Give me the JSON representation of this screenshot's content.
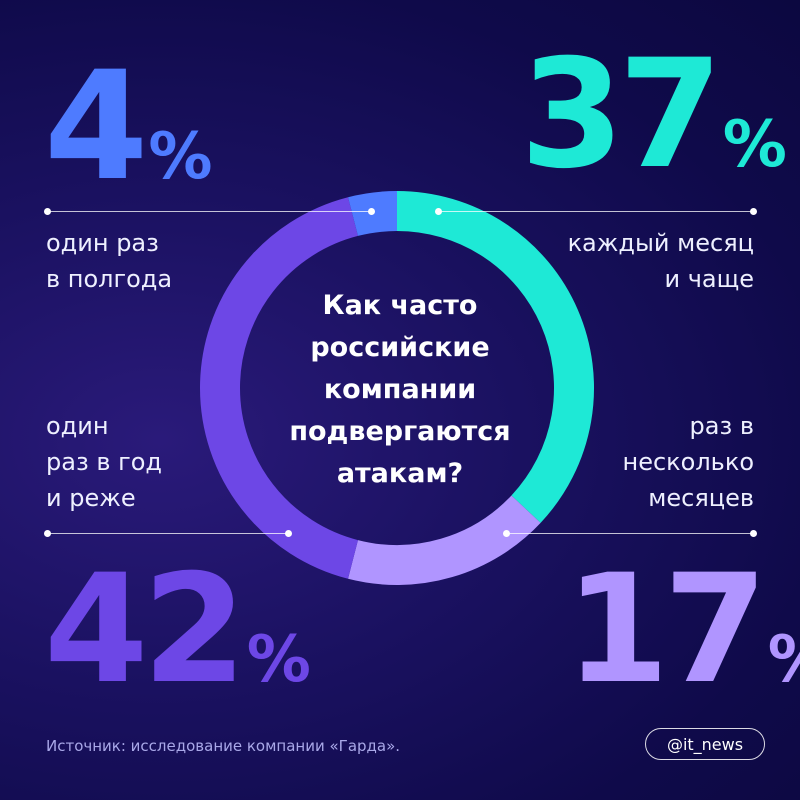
{
  "chart_data": {
    "type": "pie",
    "title": "Как часто российские компании подвергаются атакам?",
    "slices": [
      {
        "label_lines": [
          "каждый месяц",
          "и чаще"
        ],
        "value": 37,
        "value_text": "37",
        "color": "#1ee9d6"
      },
      {
        "label_lines": [
          "раз в",
          "несколько",
          "месяцев"
        ],
        "value": 17,
        "value_text": "17",
        "color": "#b095ff"
      },
      {
        "label_lines": [
          "один",
          "раз в год",
          "и реже"
        ],
        "value": 42,
        "value_text": "42",
        "color": "#6d47e6"
      },
      {
        "label_lines": [
          "один раз",
          "в полгода"
        ],
        "value": 4,
        "value_text": "4",
        "color": "#4e7bff"
      }
    ],
    "percent_sign": "%"
  },
  "title_lines": [
    "Как часто",
    "российские",
    "компании",
    "подвергаются",
    "атакам?"
  ],
  "source": "Источник: исследование компании «Гарда».",
  "handle": "@it_news",
  "colors": {
    "background": "#130d55",
    "teal": "#1ee9d6",
    "lavender": "#b095ff",
    "violet": "#6d47e6",
    "blue": "#4e7bff"
  }
}
